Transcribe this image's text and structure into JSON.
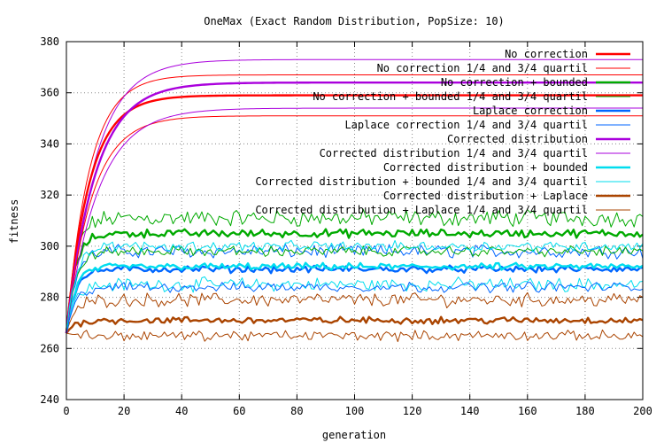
{
  "chart_data": {
    "type": "line",
    "title": "OneMax (Exact Random Distribution, PopSize: 10)",
    "xlabel": "generation",
    "ylabel": "fitness",
    "xlim": [
      0,
      200
    ],
    "ylim": [
      240,
      380
    ],
    "xticks": [
      0,
      20,
      40,
      60,
      80,
      100,
      120,
      140,
      160,
      180,
      200
    ],
    "yticks": [
      240,
      260,
      280,
      300,
      320,
      340,
      360,
      380
    ],
    "grid": true,
    "legend_position": "top-right",
    "series": [
      {
        "name": "No correction",
        "color": "#ff0000",
        "bold": true,
        "shape": "rise",
        "plateau": 359,
        "tau": 8
      },
      {
        "name": "No correction 1/4 and 3/4 quartil",
        "color": "#ff0000",
        "bold": false,
        "shape": "rise",
        "plateau": 367,
        "tau": 8
      },
      {
        "name": "No correction + bounded",
        "color": "#00aa00",
        "bold": true,
        "shape": "noisy",
        "plateau": 305,
        "noise": 1.2
      },
      {
        "name": "No correction + bounded 1/4 and 3/4 quartil",
        "color": "#00aa00",
        "bold": false,
        "shape": "noisy",
        "plateau": 311,
        "noise": 2.5
      },
      {
        "name": "Laplace correction",
        "color": "#0066ff",
        "bold": true,
        "shape": "noisy",
        "plateau": 291,
        "noise": 1.0
      },
      {
        "name": "Laplace correction 1/4 and 3/4 quartil",
        "color": "#0066ff",
        "bold": false,
        "shape": "noisy",
        "plateau": 298,
        "noise": 2.0
      },
      {
        "name": "Corrected distribution",
        "color": "#aa00dd",
        "bold": true,
        "shape": "rise",
        "plateau": 364,
        "tau": 10
      },
      {
        "name": "Corrected distribution 1/4 and 3/4 quartil",
        "color": "#aa00dd",
        "bold": false,
        "shape": "rise",
        "plateau": 373,
        "tau": 10
      },
      {
        "name": "Corrected distribution + bounded",
        "color": "#00ddee",
        "bold": true,
        "shape": "noisy",
        "plateau": 292,
        "noise": 1.0
      },
      {
        "name": "Corrected distribution + bounded 1/4 and 3/4 quartil",
        "color": "#00ddee",
        "bold": false,
        "shape": "noisy",
        "plateau": 285,
        "noise": 2.0
      },
      {
        "name": "Corrected distribution + Laplace",
        "color": "#aa4400",
        "bold": true,
        "shape": "noisy",
        "plateau": 271,
        "noise": 1.0
      },
      {
        "name": "Corrected distribution + Laplace 1/4 and 3/4 quartil",
        "color": "#aa4400",
        "bold": false,
        "shape": "noisy",
        "plateau": 279,
        "noise": 2.0
      }
    ],
    "extra_lines": [
      {
        "series_index": 0,
        "plateau": 351,
        "tau": 9
      },
      {
        "series_index": 6,
        "plateau": 354,
        "tau": 11
      },
      {
        "series_index": 2,
        "plateau": 298,
        "noise": 1.5
      },
      {
        "series_index": 4,
        "plateau": 284,
        "noise": 1.5
      },
      {
        "series_index": 8,
        "plateau": 300,
        "noise": 1.5
      },
      {
        "series_index": 10,
        "plateau": 265,
        "noise": 1.5
      }
    ]
  }
}
